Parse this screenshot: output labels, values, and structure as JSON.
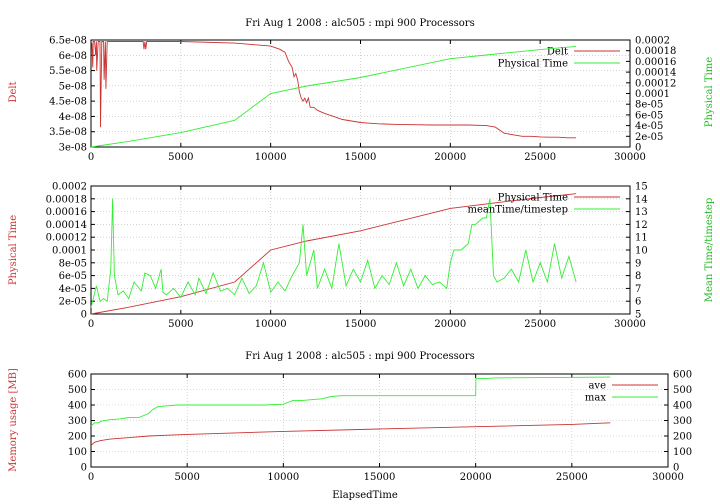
{
  "colors": {
    "red": "#cc3333",
    "green": "#33ee33"
  },
  "chart_data": [
    {
      "type": "line",
      "title": "Fri Aug 1 2008 : alc505 : mpi 900 Processors",
      "xlabel": "",
      "ylabel": "Delt",
      "y2label": "Physical Time",
      "xlim": [
        0,
        30000
      ],
      "ylim": [
        3e-08,
        6.5e-08
      ],
      "y2lim": [
        0,
        0.0002
      ],
      "xticks": [
        "0",
        "5000",
        "10000",
        "15000",
        "20000",
        "25000",
        "30000"
      ],
      "yticks": [
        "3e-08",
        "3.5e-08",
        "4e-08",
        "4.5e-08",
        "5e-08",
        "5.5e-08",
        "6e-08",
        "6.5e-08"
      ],
      "y2ticks": [
        "0",
        "2e-05",
        "4e-05",
        "6e-05",
        "8e-05",
        "0.0001",
        "0.00012",
        "0.00014",
        "0.00016",
        "0.00018",
        "0.0002"
      ],
      "grid": true,
      "legend": "top-right",
      "series": [
        {
          "name": "Delt",
          "color": "#cc3333",
          "axis": "left",
          "x": [
            0,
            50,
            100,
            120,
            200,
            260,
            300,
            320,
            400,
            460,
            500,
            530,
            600,
            630,
            700,
            730,
            800,
            830,
            900,
            950,
            1000,
            1500,
            2000,
            2900,
            2950,
            3000,
            3050,
            3100,
            5000,
            8000,
            9000,
            10000,
            10500,
            10800,
            11000,
            11200,
            11300,
            11400,
            11500,
            11600,
            11700,
            11800,
            11900,
            12000,
            12100,
            12200,
            12400,
            12600,
            13000,
            13500,
            14000,
            14500,
            15000,
            15500,
            16000,
            17000,
            18000,
            19000,
            20000,
            21000,
            22000,
            22500,
            23000,
            23500,
            24000,
            24500,
            25000,
            25500,
            26000,
            26500,
            27000
          ],
          "y": [
            6.4e-08,
            6.4e-08,
            5.6e-08,
            6.45e-08,
            6.45e-08,
            6e-08,
            6.45e-08,
            5.5e-08,
            6.45e-08,
            6.45e-08,
            6.45e-08,
            3.65e-08,
            6.45e-08,
            6.45e-08,
            6.45e-08,
            5.2e-08,
            6.45e-08,
            4.9e-08,
            6.45e-08,
            6.45e-08,
            6.45e-08,
            6.45e-08,
            6.45e-08,
            6.45e-08,
            6.2e-08,
            6.45e-08,
            6.2e-08,
            6.45e-08,
            6.45e-08,
            6.4e-08,
            6.35e-08,
            6.3e-08,
            6.2e-08,
            6.1e-08,
            5.8e-08,
            5.6e-08,
            5.3e-08,
            5.4e-08,
            5.2e-08,
            4.8e-08,
            4.6e-08,
            4.5e-08,
            4.6e-08,
            4.45e-08,
            4.6e-08,
            4.3e-08,
            4.3e-08,
            4.2e-08,
            4.1e-08,
            4e-08,
            3.9e-08,
            3.85e-08,
            3.8e-08,
            3.78e-08,
            3.76e-08,
            3.74e-08,
            3.73e-08,
            3.72e-08,
            3.72e-08,
            3.72e-08,
            3.7e-08,
            3.65e-08,
            3.45e-08,
            3.4e-08,
            3.35e-08,
            3.35e-08,
            3.33e-08,
            3.32e-08,
            3.32e-08,
            3.3e-08,
            3.3e-08
          ]
        },
        {
          "name": "Physical Time",
          "color": "#33ee33",
          "axis": "right",
          "x": [
            0,
            2000,
            5000,
            8000,
            10000,
            12000,
            15000,
            20000,
            22000,
            25000,
            27000
          ],
          "y": [
            0,
            1e-05,
            2.7e-05,
            5e-05,
            0.0001,
            0.000114,
            0.00013,
            0.000165,
            0.000172,
            0.000182,
            0.000188
          ]
        }
      ]
    },
    {
      "type": "line",
      "title": "",
      "xlabel": "",
      "ylabel": "Physical Time",
      "y2label": "Mean Time/timestep",
      "xlim": [
        0,
        30000
      ],
      "ylim": [
        0,
        0.0002
      ],
      "y2lim": [
        5,
        15
      ],
      "xticks": [
        "0",
        "5000",
        "10000",
        "15000",
        "20000",
        "25000",
        "30000"
      ],
      "yticks": [
        "0",
        "2e-05",
        "4e-05",
        "6e-05",
        "8e-05",
        "0.0001",
        "0.00012",
        "0.00014",
        "0.00016",
        "0.00018",
        "0.0002"
      ],
      "y2ticks": [
        "5",
        "6",
        "7",
        "8",
        "9",
        "10",
        "11",
        "12",
        "13",
        "14",
        "15"
      ],
      "grid": true,
      "legend": "top-right",
      "series": [
        {
          "name": "Physical Time",
          "color": "#cc3333",
          "axis": "left",
          "x": [
            0,
            2000,
            5000,
            8000,
            10000,
            12000,
            15000,
            20000,
            22000,
            25000,
            27000
          ],
          "y": [
            0,
            1e-05,
            2.7e-05,
            5e-05,
            0.0001,
            0.000114,
            0.00013,
            0.000165,
            0.000172,
            0.000182,
            0.000188
          ]
        },
        {
          "name": "meanTime/timestep",
          "color": "#33ee33",
          "axis": "right",
          "x": [
            0,
            300,
            500,
            700,
            900,
            1100,
            1200,
            1300,
            1500,
            1800,
            2100,
            2400,
            2800,
            3000,
            3300,
            3600,
            3900,
            4000,
            4200,
            4600,
            5000,
            5400,
            5800,
            6000,
            6400,
            6800,
            7200,
            7600,
            8000,
            8400,
            8800,
            9200,
            9600,
            10000,
            10400,
            10800,
            11200,
            11600,
            11800,
            12000,
            12400,
            12600,
            13000,
            13400,
            13800,
            14200,
            14600,
            15000,
            15400,
            15800,
            16200,
            16600,
            17000,
            17400,
            17800,
            18200,
            18600,
            19000,
            19400,
            19800,
            20000,
            20200,
            20600,
            21000,
            21200,
            21400,
            21800,
            22000,
            22200,
            22400,
            22600,
            23000,
            23400,
            23800,
            24200,
            24600,
            25000,
            25400,
            25800,
            26200,
            26600,
            27000
          ],
          "y": [
            5.5,
            7.2,
            6.0,
            6.2,
            6.0,
            8.5,
            14.0,
            8.0,
            6.5,
            6.8,
            6.2,
            7.5,
            6.8,
            8.2,
            8.0,
            7.0,
            8.5,
            6.7,
            6.5,
            7.0,
            6.3,
            7.5,
            6.5,
            7.8,
            6.6,
            8.2,
            6.8,
            7.0,
            6.5,
            7.8,
            6.6,
            7.2,
            9.0,
            6.7,
            7.5,
            6.8,
            8.0,
            9.0,
            12.0,
            8.0,
            10.0,
            7.0,
            8.5,
            7.0,
            10.5,
            7.2,
            8.5,
            7.5,
            9.2,
            7.0,
            8.0,
            7.3,
            9.0,
            7.2,
            8.5,
            7.0,
            8.0,
            7.3,
            7.5,
            7.0,
            9.0,
            10.0,
            10.0,
            10.5,
            12.0,
            12.0,
            12.5,
            12.5,
            14.0,
            8.0,
            7.5,
            7.8,
            8.5,
            7.5,
            10.0,
            7.5,
            9.0,
            7.5,
            10.5,
            7.8,
            9.5,
            7.5
          ]
        }
      ]
    },
    {
      "type": "line",
      "title": "Fri Aug 1 2008 : alc505 : mpi 900 Processors",
      "xlabel": "ElapsedTime",
      "ylabel": "Memory usage [MB]",
      "y2label": "",
      "xlim": [
        0,
        30000
      ],
      "ylim": [
        0,
        600
      ],
      "y2lim": [
        0,
        600
      ],
      "xticks": [
        "0",
        "5000",
        "10000",
        "15000",
        "20000",
        "25000",
        "30000"
      ],
      "yticks": [
        "0",
        "100",
        "200",
        "300",
        "400",
        "500",
        "600"
      ],
      "y2ticks": [
        "0",
        "100",
        "200",
        "300",
        "400",
        "500",
        "600"
      ],
      "grid": true,
      "legend": "top-right",
      "series": [
        {
          "name": "ave",
          "color": "#cc3333",
          "axis": "left",
          "x": [
            0,
            200,
            500,
            1000,
            2000,
            3000,
            4000,
            5000,
            10000,
            15000,
            20000,
            25000,
            27000
          ],
          "y": [
            140,
            160,
            170,
            180,
            190,
            200,
            205,
            210,
            230,
            245,
            260,
            275,
            285
          ]
        },
        {
          "name": "max",
          "color": "#33ee33",
          "axis": "left",
          "x": [
            0,
            200,
            400,
            500,
            1000,
            1500,
            2000,
            2500,
            3000,
            3200,
            3500,
            4000,
            4500,
            9000,
            10000,
            10500,
            11000,
            12000,
            12500,
            13000,
            20000,
            20010,
            20500,
            21000,
            27000
          ],
          "y": [
            265,
            285,
            285,
            295,
            305,
            310,
            320,
            320,
            345,
            370,
            390,
            395,
            400,
            400,
            405,
            430,
            430,
            440,
            455,
            460,
            460,
            570,
            570,
            575,
            580
          ]
        }
      ]
    }
  ]
}
